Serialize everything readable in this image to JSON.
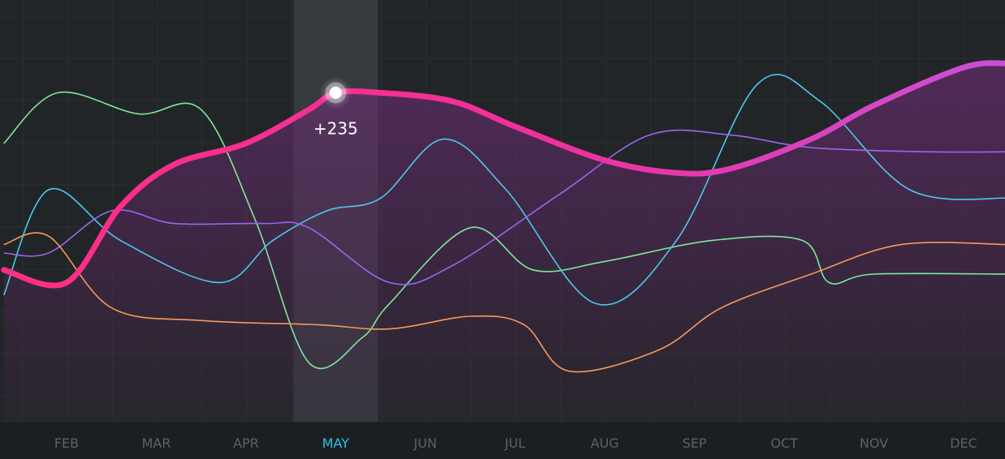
{
  "chart_data": {
    "type": "line",
    "categories": [
      "FEB",
      "MAR",
      "APR",
      "MAY",
      "JUN",
      "JUL",
      "AUG",
      "SEP",
      "OCT",
      "NOV",
      "DEC"
    ],
    "highlight": {
      "category": "MAY",
      "value_label": "+235",
      "color": "#2fc1ea"
    },
    "grid": true,
    "ylim": [
      0,
      100
    ],
    "colors": {
      "background": "#222528",
      "axis_bar": "#1c1f22",
      "tick_label": "#5d6268",
      "highlight_band": "#3a3e42",
      "area_fill": "#6a2e72"
    },
    "series": [
      {
        "primary": true,
        "gradient": [
          "#ff2e84",
          "#c850d8"
        ],
        "x": [
          -0.7,
          0,
          0.6,
          1.2,
          2,
          2.7,
          3,
          3.5,
          4.3,
          5,
          6,
          6.8,
          7.4,
          8.3,
          9,
          10,
          10.5
        ],
        "y": [
          36,
          33,
          51,
          61,
          66,
          74,
          78,
          78,
          76,
          70,
          62,
          59,
          60,
          67,
          75,
          84,
          85
        ]
      },
      {
        "color": "#7ee89a",
        "x": [
          -0.7,
          -0.1,
          0.8,
          1.5,
          2.1,
          2.7,
          3.3,
          3.6,
          4.5,
          5.2,
          6,
          7.2,
          8.2,
          8.5,
          9,
          10.5
        ],
        "y": [
          66,
          78,
          73,
          74,
          48,
          14,
          20,
          28,
          46,
          36,
          38,
          43,
          43,
          33,
          35,
          35
        ]
      },
      {
        "color": "#4dc8ec",
        "x": [
          -0.7,
          -0.2,
          0.6,
          1.7,
          2.3,
          2.9,
          3.5,
          4.2,
          4.9,
          5.9,
          6.8,
          7.7,
          8.4,
          9.4,
          10.5
        ],
        "y": [
          30,
          55,
          43,
          33,
          43,
          50,
          53,
          67,
          55,
          28,
          43,
          80,
          76,
          55,
          53
        ]
      },
      {
        "color": "#9a66ec",
        "x": [
          -0.7,
          -0.2,
          0.5,
          1.2,
          2.2,
          2.7,
          3.6,
          4.3,
          5.5,
          6.5,
          7.4,
          8.3,
          9.6,
          10.5
        ],
        "y": [
          40,
          40,
          50,
          47,
          47,
          46,
          33,
          37,
          54,
          68,
          68,
          65,
          64,
          64
        ]
      },
      {
        "color": "#f59a5a",
        "x": [
          -0.7,
          -0.2,
          0.5,
          1.5,
          2.8,
          3.6,
          4.5,
          5.1,
          5.6,
          6.6,
          7.3,
          8.3,
          9.3,
          10.5
        ],
        "y": [
          42,
          44,
          27,
          24,
          23,
          22,
          25,
          23,
          12,
          17,
          27,
          35,
          42,
          42
        ]
      }
    ]
  }
}
